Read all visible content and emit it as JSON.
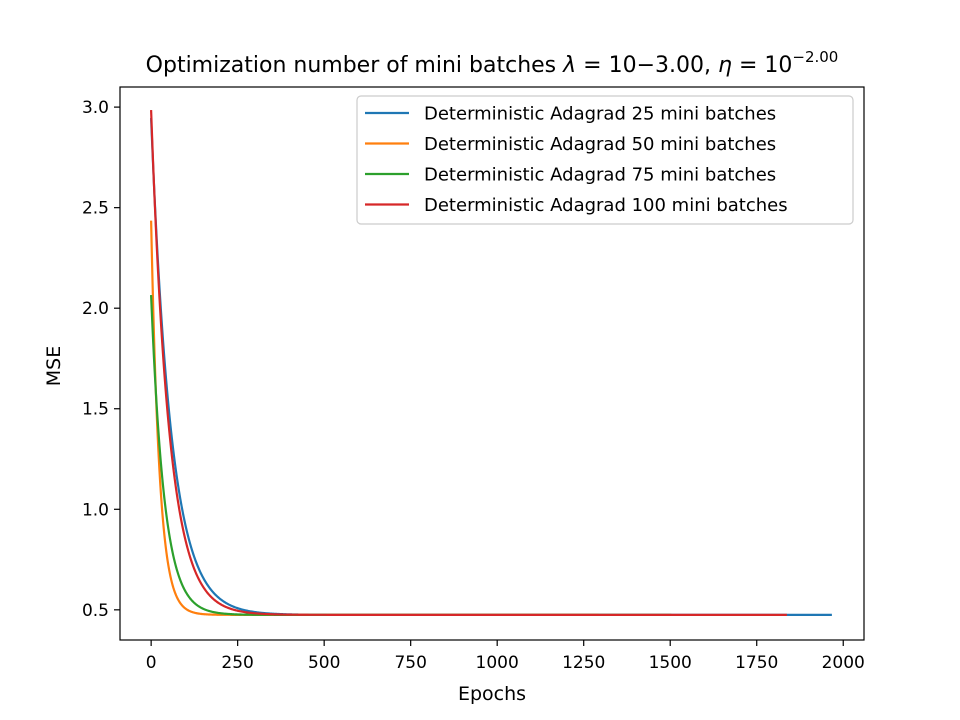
{
  "chart_data": {
    "type": "line",
    "title": {
      "prefix": "Optimization number of mini batches ",
      "lambda_symbol": "λ",
      "lambda_eq": " = 10−3.00, ",
      "eta_symbol": "η",
      "eta_eq": " = 10",
      "eta_exponent": "−2.00"
    },
    "xlabel": "Epochs",
    "ylabel": "MSE",
    "xlim": [
      -90,
      2060
    ],
    "ylim": [
      0.35,
      3.1
    ],
    "xticks": [
      0,
      250,
      500,
      750,
      1000,
      1250,
      1500,
      1750,
      2000
    ],
    "xtick_labels": [
      "0",
      "250",
      "500",
      "750",
      "1000",
      "1250",
      "1500",
      "1750",
      "2000"
    ],
    "yticks": [
      0.5,
      1.0,
      1.5,
      2.0,
      2.5,
      3.0
    ],
    "ytick_labels": [
      "0.5",
      "1.0",
      "1.5",
      "2.0",
      "2.5",
      "3.0"
    ],
    "grid": false,
    "legend_position": "top-right",
    "series": [
      {
        "name": "Deterministic Adagrad 25 mini batches",
        "color": "#1f77b4",
        "start": 2.94,
        "plateau": 0.475,
        "decay_epochs": 58,
        "x_max": 1965
      },
      {
        "name": "Deterministic Adagrad 50 mini batches",
        "color": "#ff7f0e",
        "start": 2.43,
        "plateau": 0.475,
        "decay_epochs": 24,
        "x_max": 1290
      },
      {
        "name": "Deterministic Adagrad 75 mini batches",
        "color": "#2ca02c",
        "start": 2.06,
        "plateau": 0.475,
        "decay_epochs": 38,
        "x_max": 1500
      },
      {
        "name": "Deterministic Adagrad 100 mini batches",
        "color": "#d62728",
        "start": 2.98,
        "plateau": 0.475,
        "decay_epochs": 52,
        "x_max": 1835
      }
    ]
  }
}
